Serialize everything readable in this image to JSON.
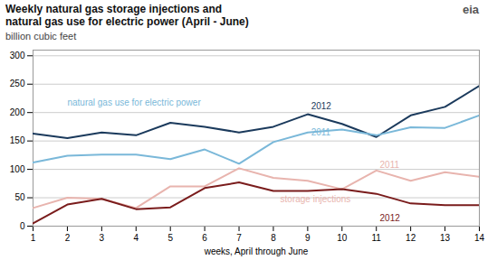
{
  "chart_data": {
    "type": "line",
    "title": "Weekly natural gas storage injections and",
    "subtitle": "natural gas use for electric power  (April - June)",
    "ylabel": "billion cubic feet",
    "xlabel": "weeks, April through June",
    "logo": "eia",
    "x": [
      1,
      2,
      3,
      4,
      5,
      6,
      7,
      8,
      9,
      10,
      11,
      12,
      13,
      14
    ],
    "series": [
      {
        "color": "#1b3a5c",
        "values": [
          163,
          155,
          165,
          160,
          182,
          175,
          165,
          175,
          197,
          180,
          157,
          195,
          210,
          247
        ]
      },
      {
        "color": "#7ab8d9",
        "values": [
          112,
          124,
          126,
          126,
          118,
          135,
          110,
          148,
          165,
          170,
          160,
          174,
          173,
          195
        ]
      },
      {
        "color": "#e8b4ae",
        "values": [
          32,
          50,
          48,
          32,
          70,
          70,
          102,
          85,
          80,
          65,
          98,
          80,
          95,
          87
        ]
      },
      {
        "color": "#7a1c1c",
        "values": [
          5,
          38,
          48,
          30,
          33,
          67,
          77,
          62,
          62,
          65,
          57,
          40,
          37,
          37
        ]
      }
    ],
    "xlim": [
      1,
      14
    ],
    "xticks": [
      1,
      2,
      3,
      4,
      5,
      6,
      7,
      8,
      9,
      10,
      11,
      12,
      13,
      14
    ],
    "ylim": [
      0,
      310
    ],
    "yticks": [
      0,
      50,
      100,
      150,
      200,
      250,
      300
    ],
    "grid": "y",
    "annotations": [
      {
        "text": "natural gas use for electric power",
        "x": 2.0,
        "y": 218,
        "color": "#7ab8d9"
      },
      {
        "text": "2012",
        "x": 9.1,
        "y": 211,
        "color": "#1b3a5c"
      },
      {
        "text": "2011",
        "x": 9.1,
        "y": 165,
        "color": "#7ab8d9"
      },
      {
        "text": "storage injections",
        "x": 8.2,
        "y": 48,
        "color": "#e8b4ae"
      },
      {
        "text": "2011",
        "x": 11.1,
        "y": 108,
        "color": "#e8b4ae"
      },
      {
        "text": "2012",
        "x": 11.1,
        "y": 14,
        "color": "#7a1c1c"
      }
    ]
  }
}
